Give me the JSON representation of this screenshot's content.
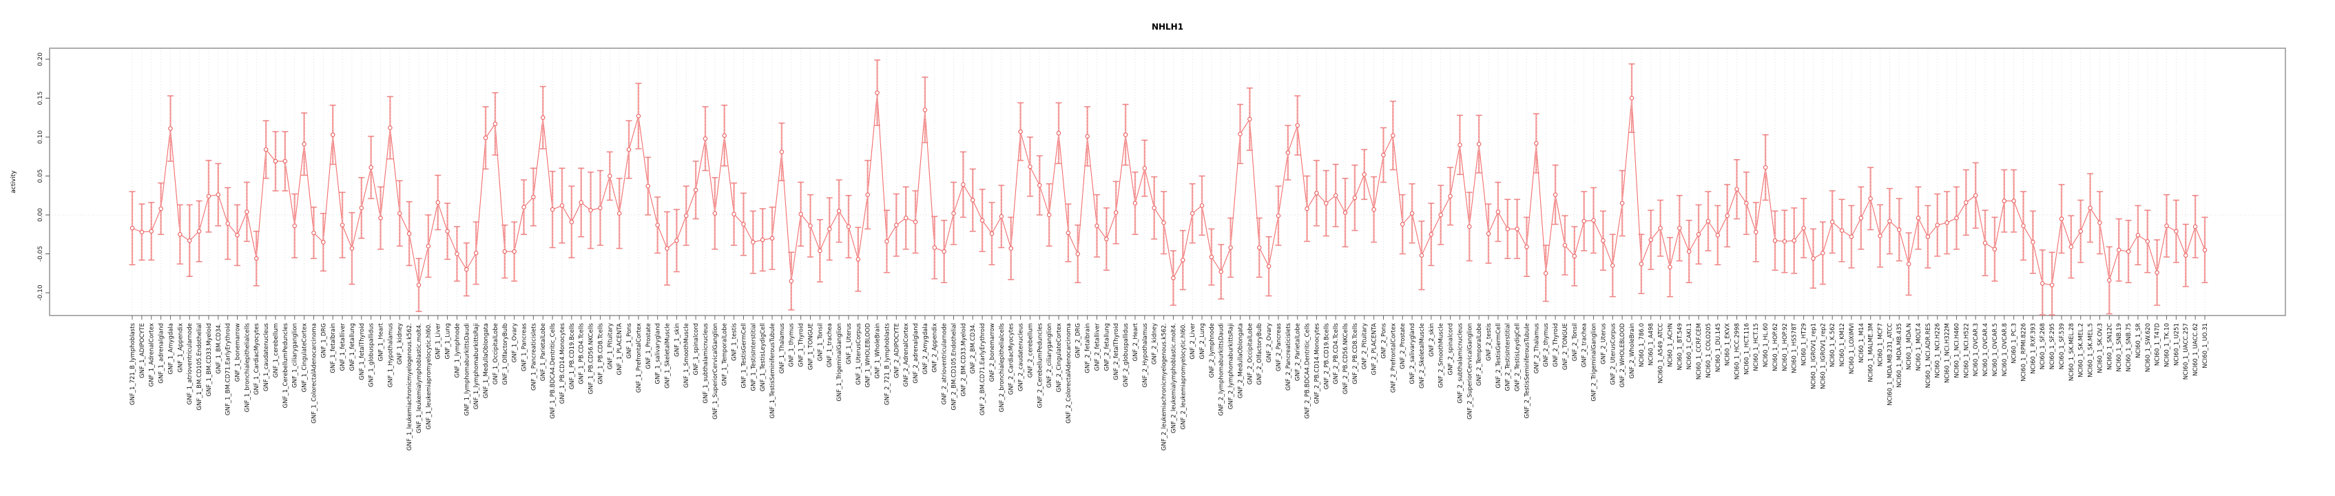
{
  "figure": {
    "title": "NHLH1",
    "ylabel": "activity",
    "background": "#ffffff",
    "box_color": "#9a9a9a",
    "grid_color": "#d8d8d8",
    "tick_color": "#666666"
  },
  "chart_data": {
    "type": "line",
    "title": "NHLH1",
    "xlabel": "",
    "ylabel": "activity",
    "ylim": [
      -0.131,
      0.205
    ],
    "yticks": [
      0.2,
      0.15,
      0.1,
      0.05,
      0.0,
      -0.05,
      -0.1
    ],
    "ytick_labels": [
      "0.20",
      "0.15",
      "0.10",
      "0.05",
      "0.00",
      "-0.05",
      "-0.10"
    ],
    "grid": "vertical dotted line per category, dotted horizontal line at y=0",
    "legend": "none",
    "marker": "open-circle",
    "has_error_bars": true,
    "series_line_color": "#f26d6d",
    "errorbar_color": "#f5a9a9",
    "errorbar_cap_color": "#ef8282",
    "marker_color": "#ea5f5f",
    "categories": [
      "GNF_1_721_B_lymphoblasts",
      "GNF_1_ADIPOCYTE",
      "GNF_1_AdrenalCortex",
      "GNF_1_adrenalgland",
      "GNF_1_Amygdala",
      "GNF_1_Appendix",
      "GNF_1_atrioventricularnode",
      "GNF_1_BM.CD105.Endothelial",
      "GNF_1_BM.CD33.Myeloid",
      "GNF_1_BM.CD34.",
      "GNF_1_BM.CD71.EarlyErythroid",
      "GNF_1_bonemarrow",
      "GNF_1_bronchialepithelialcells",
      "GNF_1_CardiacMyocytes",
      "GNF_1_caudatenucleus",
      "GNF_1_cerebellum",
      "GNF_1_CerebellumPeduncles",
      "GNF_1_ciliaryganglion",
      "GNF_1_CingulateCortex",
      "GNF_1_ColorectalAdenocarcinoma",
      "GNF_1_DRG",
      "GNF_1_fetalbrain",
      "GNF_1_fetalliver",
      "GNF_1_fetallung",
      "GNF_1_fetalThyroid",
      "GNF_1_globuspallidus",
      "GNF_1_Heart",
      "GNF_1_Hypothalamus",
      "GNF_1_kidney",
      "GNF_1_leukemiachronicmyelogenous.k562.",
      "GNF_1_leukemialymphoblastic.molt4.",
      "GNF_1_leukemiapromyelocytic.hl60.",
      "GNF_1_Liver",
      "GNF_1_Lung",
      "GNF_1_lymphnode",
      "GNF_1_lymphomaburkittsDaudi",
      "GNF_1_lymphomaburkittsRaji",
      "GNF_1_MedullaOblongata",
      "GNF_1_OccipitalLobe",
      "GNF_1_OlfactoryBulb",
      "GNF_1_Ovary",
      "GNF_1_Pancreas",
      "GNF_1_Pancreaticislets",
      "GNF_1_ParietalLobe",
      "GNF_1_PB.BDCA4.Dentritic_Cells",
      "GNF_1_PB.CD14.Monocytes",
      "GNF_1_PB.CD19.Bcells",
      "GNF_1_PB.CD4.Tcells",
      "GNF_1_PB.CD56.NKCells",
      "GNF_1_PB.CD8.Tcells",
      "GNF_1_Pituitary",
      "GNF_1_PLACENTA",
      "GNF_1_Pons",
      "GNF_1_PrefrontalCortex",
      "GNF_1_Prostate",
      "GNF_1_salivarygland",
      "GNF_1_SkeletalMuscle",
      "GNF_1_skin",
      "GNF_1_SmoothMuscle",
      "GNF_1_spinalcord",
      "GNF_1_subthalamicnucleus",
      "GNF_1_SuperiorCervicalGanglion",
      "GNF_1_TemporalLobe",
      "GNF_1_testis",
      "GNF_1_TestisGermCell",
      "GNF_1_TestisInterstitial",
      "GNF_1_TestisLeydigCell",
      "GNF_1_TestisSeminiferousTubule",
      "GNF_1_Thalamus",
      "GNF_1_thymus",
      "GNF_1_Thyroid",
      "GNF_1_TONGUE",
      "GNF_1_Tonsil",
      "GNF_1_trachea",
      "GNF_1_TrigeminalGanglion",
      "GNF_1_Uterus",
      "GNF_1_UterusCorpus",
      "GNF_1_WHOLEBLOOD",
      "GNF_1_WholeBrain",
      "GNF_2_721_B_lymphoblasts",
      "GNF_2_ADIPOCYTE",
      "GNF_2_AdrenalCortex",
      "GNF_2_adrenalgland",
      "GNF_2_Amygdala",
      "GNF_2_Appendix",
      "GNF_2_atrioventricularnode",
      "GNF_2_BM.CD105.Endothelial",
      "GNF_2_BM.CD33.Myeloid",
      "GNF_2_BM.CD34.",
      "GNF_2_BM.CD71.EarlyErythroid",
      "GNF_2_bonemarrow",
      "GNF_2_bronchialepithelialcells",
      "GNF_2_CardiacMyocytes",
      "GNF_2_caudatenucleus",
      "GNF_2_cerebellum",
      "GNF_2_CerebellumPeduncles",
      "GNF_2_ciliaryganglion",
      "GNF_2_CingulateCortex",
      "GNF_2_ColorectalAdenocarcinoma",
      "GNF_2_DRG",
      "GNF_2_fetalbrain",
      "GNF_2_fetalliver",
      "GNF_2_fetallung",
      "GNF_2_fetalThyroid",
      "GNF_2_globuspallidus",
      "GNF_2_Heart",
      "GNF_2_Hypothalamus",
      "GNF_2_kidney",
      "GNF_2_leukemiachronicmyelogenous.k562.",
      "GNF_2_leukemialymphoblastic.molt4.",
      "GNF_2_leukemiapromyelocytic.hl60.",
      "GNF_2_Liver",
      "GNF_2_Lung",
      "GNF_2_lymphnode",
      "GNF_2_lymphomaburkittsDaudi",
      "GNF_2_lymphomaburkittsRaji",
      "GNF_2_MedullaOblongata",
      "GNF_2_OccipitalLobe",
      "GNF_2_OlfactoryBulb",
      "GNF_2_Ovary",
      "GNF_2_Pancreas",
      "GNF_2_Pancreaticislets",
      "GNF_2_ParietalLobe",
      "GNF_2_PB.BDCA4.Dentritic_Cells",
      "GNF_2_PB.CD14.Monocytes",
      "GNF_2_PB.CD19.Bcells",
      "GNF_2_PB.CD4.Tcells",
      "GNF_2_PB.CD56.NKCells",
      "GNF_2_PB.CD8.Tcells",
      "GNF_2_Pituitary",
      "GNF_2_PLACENTA",
      "GNF_2_Pons",
      "GNF_2_PrefrontalCortex",
      "GNF_2_Prostate",
      "GNF_2_salivarygland",
      "GNF_2_SkeletalMuscle",
      "GNF_2_skin",
      "GNF_2_SmoothMuscle",
      "GNF_2_spinalcord",
      "GNF_2_subthalamicnucleus",
      "GNF_2_SuperiorCervicalGanglion",
      "GNF_2_TemporalLobe",
      "GNF_2_testis",
      "GNF_2_TestisGermCell",
      "GNF_2_TestisInterstitial",
      "GNF_2_TestisLeydigCell",
      "GNF_2_TestisSeminiferousTubule",
      "GNF_2_Thalamus",
      "GNF_2_thymus",
      "GNF_2_Thyroid",
      "GNF_2_TONGUE",
      "GNF_2_Tonsil",
      "GNF_2_trachea",
      "GNF_2_TrigeminalGanglion",
      "GNF_2_Uterus",
      "GNF_2_UterusCorpus",
      "GNF_2_WHOLEBLOOD",
      "GNF_2_WholeBrain",
      "NCI60_1_786.0",
      "NCI60_1_A498",
      "NCI60_1_A549_ATCC",
      "NCI60_1_ACHN",
      "NCI60_1_BT.549",
      "NCI60_1_CAKI.1",
      "NCI60_1_CCRF.CEM",
      "NCI60_1_COLO205",
      "NCI60_1_DU.145",
      "NCI60_1_EKVX",
      "NCI60_1_HCC.2998",
      "NCI60_1_HCT.116",
      "NCI60_1_HCT.15",
      "NCI60_1_HL.60",
      "NCI60_1_HOP.62",
      "NCI60_1_HOP.92",
      "NCI60_1_HS578T",
      "NCI60_1_HT29",
      "NCI60_1_IGROV1_rep1",
      "NCI60_1_IGROV1_rep2",
      "NCI60_1_K.562",
      "NCI60_1_KM12",
      "NCI60_1_LOXIMVI",
      "NCI60_1_M14",
      "NCI60_1_MALME.3M",
      "NCI60_1_MCF7",
      "NCI60_1_MDA.MB.231_ATCC",
      "NCI60_1_MDA.MB.435",
      "NCI60_1_MDA.N",
      "NCI60_1_MOLT.4",
      "NCI60_1_NCI.ADR.RES",
      "NCI60_1_NCI.H226",
      "NCI60_1_NCI.H322M",
      "NCI60_1_NCI.H460",
      "NCI60_1_NCI.H522",
      "NCI60_1_OVCAR.3",
      "NCI60_1_OVCAR.4",
      "NCI60_1_OVCAR.5",
      "NCI60_1_OVCAR.8",
      "NCI60_1_PC.3",
      "NCI60_1_RPMI.8226",
      "NCI60_1_RXF.393",
      "NCI60_1_SF.268",
      "NCI60_1_SF.295",
      "NCI60_1_SF.539",
      "NCI60_1_SK.MEL.28",
      "NCI60_1_SK.MEL.2",
      "NCI60_1_SK.MEL.5",
      "NCI60_1_SK.OV.3",
      "NCI60_1_SN12C",
      "NCI60_1_SNB.19",
      "NCI60_1_SNB.75",
      "NCI60_1_SR",
      "NCI60_1_SW.620",
      "NCI60_1_T47D",
      "NCI60_1_TK.10",
      "NCI60_1_U251",
      "NCI60_1_UACC.257",
      "NCI60_1_UACC.62",
      "NCI60_1_UO.31"
    ],
    "values": [
      -0.017,
      -0.022,
      -0.021,
      0.008,
      0.111,
      -0.025,
      -0.033,
      -0.021,
      0.024,
      0.026,
      -0.011,
      -0.026,
      0.004,
      -0.056,
      0.084,
      0.069,
      0.069,
      -0.014,
      0.091,
      -0.023,
      -0.035,
      0.103,
      -0.013,
      -0.043,
      0.009,
      0.061,
      -0.004,
      0.112,
      0.002,
      -0.024,
      -0.09,
      -0.04,
      0.016,
      -0.021,
      -0.05,
      -0.07,
      -0.049,
      0.099,
      0.117,
      -0.047,
      -0.047,
      0.01,
      0.023,
      0.125,
      0.007,
      0.012,
      -0.009,
      0.016,
      0.006,
      0.009,
      0.05,
      0.002,
      0.084,
      0.127,
      0.037,
      -0.013,
      -0.043,
      -0.033,
      -0.001,
      0.032,
      0.098,
      0.002,
      0.102,
      0.001,
      -0.012,
      -0.035,
      -0.032,
      -0.03,
      0.081,
      -0.085,
      0.001,
      -0.014,
      -0.046,
      -0.018,
      0.005,
      -0.015,
      -0.057,
      0.026,
      0.157,
      -0.034,
      -0.013,
      -0.004,
      -0.009,
      0.135,
      -0.042,
      -0.047,
      0.002,
      0.039,
      0.019,
      -0.007,
      -0.024,
      -0.002,
      -0.043,
      0.107,
      0.062,
      0.038,
      0.0,
      0.105,
      -0.023,
      -0.05,
      0.101,
      -0.014,
      -0.031,
      0.003,
      0.103,
      0.015,
      0.06,
      0.009,
      -0.01,
      -0.081,
      -0.058,
      0.002,
      0.012,
      -0.054,
      -0.073,
      -0.042,
      0.104,
      0.123,
      -0.042,
      -0.066,
      -0.001,
      0.08,
      0.115,
      0.008,
      0.028,
      0.015,
      0.025,
      0.003,
      0.022,
      0.052,
      0.007,
      0.077,
      0.102,
      -0.012,
      0.002,
      -0.052,
      -0.025,
      0.0,
      0.024,
      0.09,
      -0.015,
      0.091,
      -0.024,
      0.004,
      -0.018,
      -0.018,
      -0.041,
      0.092,
      -0.075,
      0.026,
      -0.039,
      -0.053,
      -0.008,
      -0.007,
      -0.033,
      -0.065,
      0.015,
      0.15,
      -0.063,
      -0.032,
      -0.017,
      -0.067,
      -0.017,
      -0.047,
      -0.025,
      -0.008,
      -0.026,
      -0.001,
      0.033,
      0.015,
      -0.022,
      0.061,
      -0.033,
      -0.034,
      -0.033,
      -0.017,
      -0.056,
      -0.049,
      -0.009,
      -0.02,
      -0.028,
      -0.004,
      0.021,
      -0.027,
      -0.008,
      -0.019,
      -0.063,
      -0.004,
      -0.028,
      -0.013,
      -0.01,
      -0.004,
      0.016,
      0.025,
      -0.036,
      -0.044,
      0.018,
      0.018,
      -0.014,
      -0.035,
      -0.088,
      -0.09,
      -0.005,
      -0.041,
      -0.021,
      0.009,
      -0.01,
      -0.084,
      -0.045,
      -0.047,
      -0.026,
      -0.034,
      -0.074,
      -0.014,
      -0.021,
      -0.052,
      -0.015,
      -0.045
    ],
    "errors": [
      0.047,
      0.036,
      0.037,
      0.033,
      0.042,
      0.038,
      0.046,
      0.039,
      0.046,
      0.04,
      0.046,
      0.039,
      0.038,
      0.035,
      0.037,
      0.038,
      0.038,
      0.041,
      0.04,
      0.033,
      0.037,
      0.038,
      0.042,
      0.046,
      0.039,
      0.04,
      0.04,
      0.04,
      0.042,
      0.041,
      0.034,
      0.04,
      0.035,
      0.036,
      0.035,
      0.034,
      0.04,
      0.04,
      0.04,
      0.034,
      0.038,
      0.035,
      0.037,
      0.04,
      0.049,
      0.048,
      0.046,
      0.044,
      0.049,
      0.048,
      0.031,
      0.045,
      0.037,
      0.042,
      0.037,
      0.036,
      0.047,
      0.04,
      0.038,
      0.037,
      0.041,
      0.046,
      0.039,
      0.04,
      0.04,
      0.04,
      0.04,
      0.04,
      0.037,
      0.037,
      0.041,
      0.04,
      0.04,
      0.04,
      0.04,
      0.04,
      0.041,
      0.044,
      0.042,
      0.04,
      0.04,
      0.04,
      0.04,
      0.042,
      0.04,
      0.04,
      0.04,
      0.042,
      0.04,
      0.04,
      0.04,
      0.04,
      0.04,
      0.037,
      0.038,
      0.038,
      0.04,
      0.039,
      0.037,
      0.037,
      0.038,
      0.04,
      0.04,
      0.04,
      0.039,
      0.04,
      0.036,
      0.04,
      0.04,
      0.035,
      0.038,
      0.038,
      0.038,
      0.036,
      0.035,
      0.038,
      0.038,
      0.04,
      0.038,
      0.038,
      0.038,
      0.035,
      0.038,
      0.042,
      0.042,
      0.042,
      0.04,
      0.044,
      0.042,
      0.032,
      0.042,
      0.035,
      0.044,
      0.038,
      0.038,
      0.044,
      0.04,
      0.038,
      0.037,
      0.038,
      0.044,
      0.037,
      0.038,
      0.038,
      0.038,
      0.038,
      0.038,
      0.038,
      0.036,
      0.038,
      0.038,
      0.038,
      0.038,
      0.042,
      0.038,
      0.04,
      0.042,
      0.044,
      0.038,
      0.038,
      0.036,
      0.038,
      0.042,
      0.04,
      0.038,
      0.038,
      0.038,
      0.04,
      0.038,
      0.04,
      0.038,
      0.042,
      0.038,
      0.04,
      0.042,
      0.038,
      0.038,
      0.04,
      0.04,
      0.04,
      0.04,
      0.04,
      0.04,
      0.04,
      0.042,
      0.04,
      0.04,
      0.04,
      0.04,
      0.04,
      0.04,
      0.04,
      0.042,
      0.042,
      0.042,
      0.041,
      0.04,
      0.04,
      0.044,
      0.04,
      0.043,
      0.042,
      0.044,
      0.04,
      0.04,
      0.044,
      0.04,
      0.043,
      0.04,
      0.04,
      0.038,
      0.04,
      0.042,
      0.04,
      0.04,
      0.04,
      0.04,
      0.042
    ]
  }
}
